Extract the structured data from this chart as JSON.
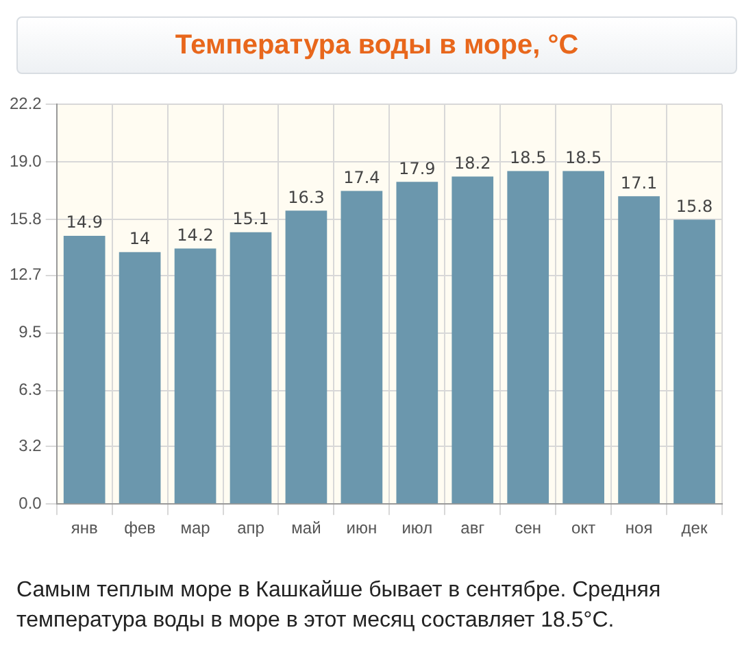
{
  "chart_data": {
    "type": "bar",
    "title": "Температура воды в море, °C",
    "categories": [
      "янв",
      "фев",
      "мар",
      "апр",
      "май",
      "июн",
      "июл",
      "авг",
      "сен",
      "окт",
      "ноя",
      "дек"
    ],
    "values": [
      14.9,
      14,
      14.2,
      15.1,
      16.3,
      17.4,
      17.9,
      18.2,
      18.5,
      18.5,
      17.1,
      15.8
    ],
    "color": "#6b97ad",
    "ylim": [
      0,
      22.2
    ],
    "yticks": [
      {
        "value": 0,
        "label": "0.0"
      },
      3.2,
      6.3,
      9.5,
      12.7,
      15.8,
      {
        "value": 19,
        "label": "19.0"
      },
      22.2
    ],
    "grid": true,
    "legend": false,
    "data_labels": true,
    "annotations": [
      "Самым теплым море в Кашкайше бывает в сентябре. Средняя температура воды в море в этот месяц составляет 18.5°C."
    ]
  }
}
